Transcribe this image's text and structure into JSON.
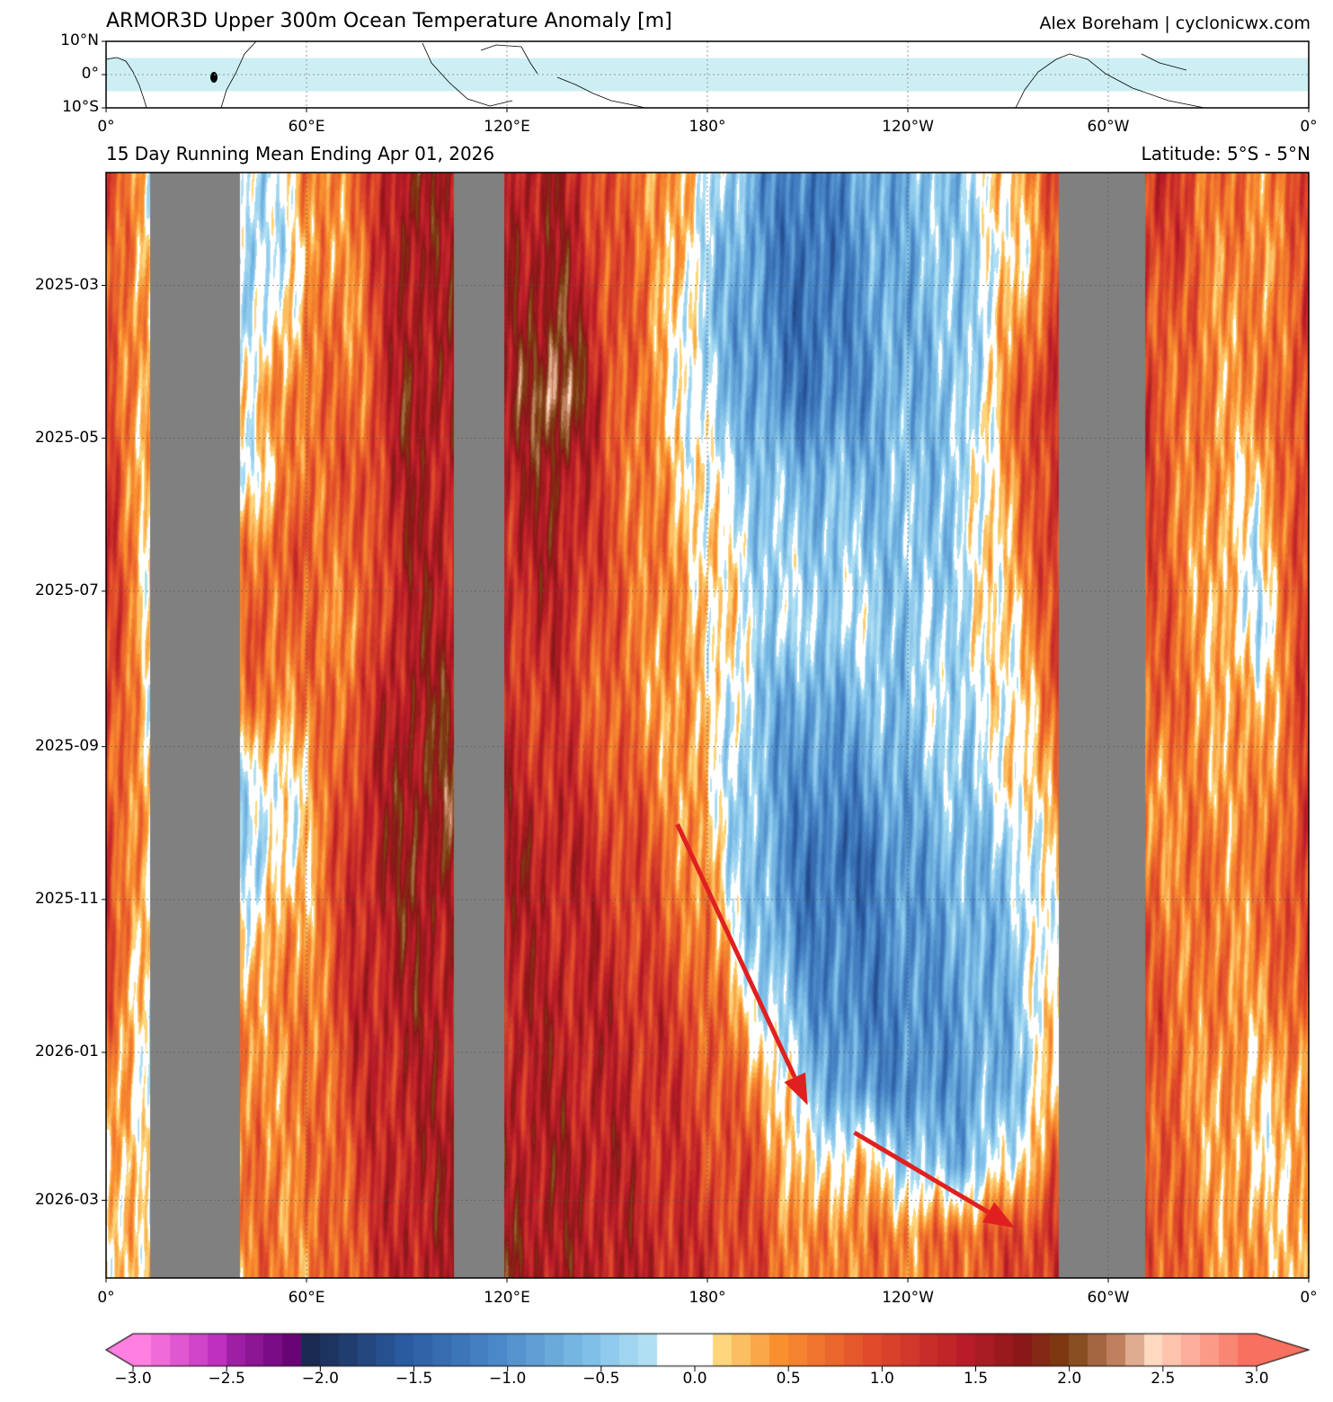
{
  "chart_data": {
    "type": "heatmap",
    "title": "ARMOR3D Upper 300m Ocean Temperature Anomaly [m]",
    "credit": "Alex Boreham | cyclonicwx.com",
    "subtitle_left": "15 Day Running Mean Ending Apr 01, 2026",
    "subtitle_right": "Latitude: 5°S - 5°N",
    "map_panel": {
      "y_ticks": [
        "10°N",
        "0°",
        "10°S"
      ],
      "lat_range": [
        -10,
        10
      ],
      "highlight_band_lat": [
        -5,
        5
      ],
      "highlight_color": "#cdeff3"
    },
    "x_ticks": [
      "0°",
      "60°E",
      "120°E",
      "180°",
      "120°W",
      "60°W",
      "0°"
    ],
    "x_tick_values": [
      0,
      60,
      120,
      180,
      240,
      300,
      360
    ],
    "xlim": [
      0,
      360
    ],
    "y_ticks": [
      "2025-03",
      "2025-05",
      "2025-07",
      "2025-09",
      "2025-11",
      "2026-01",
      "2026-03"
    ],
    "ylim": [
      "2025-01-15",
      "2026-04-01"
    ],
    "y_inverted": true,
    "grid": true,
    "land_color": "#808080",
    "land_bands_lon": [
      [
        13,
        40
      ],
      [
        104,
        119
      ],
      [
        285,
        311
      ]
    ],
    "lon": [
      0,
      15,
      30,
      45,
      60,
      75,
      90,
      105,
      120,
      135,
      150,
      165,
      180,
      195,
      210,
      225,
      240,
      255,
      270,
      285,
      300,
      315,
      330,
      345
    ],
    "time": [
      "2025-01-15",
      "2025-02-15",
      "2025-03-15",
      "2025-04-15",
      "2025-05-15",
      "2025-06-15",
      "2025-07-15",
      "2025-08-15",
      "2025-09-15",
      "2025-10-15",
      "2025-11-15",
      "2025-12-15",
      "2026-01-15",
      "2026-02-15",
      "2026-03-15"
    ],
    "values": [
      [
        1.0,
        0,
        0,
        -0.3,
        0.5,
        0.8,
        1.8,
        1.5,
        1.5,
        1.6,
        0.9,
        0.6,
        0.0,
        -0.8,
        -1.2,
        -0.8,
        -0.6,
        -0.4,
        0.3,
        1.0,
        1.0,
        1.3,
        0.8,
        0.6
      ],
      [
        1.0,
        0,
        0,
        -0.4,
        0.3,
        0.7,
        1.8,
        1.5,
        1.6,
        1.7,
        1.0,
        0.6,
        -0.3,
        -0.9,
        -1.3,
        -0.9,
        -0.6,
        -0.4,
        0.0,
        0.8,
        1.0,
        1.2,
        0.7,
        0.5
      ],
      [
        1.1,
        0,
        0,
        -0.3,
        0.6,
        0.6,
        1.7,
        1.5,
        1.6,
        2.0,
        1.1,
        0.5,
        -0.4,
        -0.9,
        -1.3,
        -0.9,
        -0.6,
        -0.5,
        0.3,
        1.2,
        1.2,
        1.0,
        0.6,
        0.5
      ],
      [
        1.2,
        0,
        0,
        0.3,
        0.8,
        0.7,
        1.8,
        1.6,
        1.6,
        2.5,
        1.1,
        0.4,
        -0.3,
        -0.8,
        -1.2,
        -0.9,
        -0.6,
        -0.5,
        0.6,
        1.6,
        1.4,
        1.0,
        0.5,
        0.6
      ],
      [
        1.3,
        0,
        0,
        0.0,
        0.8,
        0.9,
        1.6,
        1.5,
        1.5,
        1.8,
        1.0,
        0.5,
        0.0,
        -0.5,
        -0.6,
        -0.6,
        -0.5,
        -0.4,
        0.5,
        1.3,
        1.2,
        1.0,
        0.5,
        0.2
      ],
      [
        1.3,
        0,
        0,
        0.8,
        0.9,
        0.7,
        1.6,
        1.5,
        1.4,
        1.6,
        1.0,
        0.6,
        0.2,
        -0.3,
        -0.4,
        -0.4,
        -0.5,
        -0.3,
        0.4,
        1.2,
        1.2,
        0.9,
        0.4,
        0.0
      ],
      [
        1.2,
        0,
        0,
        1.0,
        0.7,
        0.6,
        1.6,
        1.5,
        1.3,
        1.4,
        0.9,
        0.6,
        0.3,
        -0.2,
        -0.3,
        -0.2,
        -0.5,
        -0.2,
        0.2,
        1.0,
        1.1,
        0.9,
        0.4,
        -0.2
      ],
      [
        1.1,
        0,
        0,
        0.7,
        0.6,
        1.0,
        1.7,
        1.8,
        1.2,
        1.2,
        0.8,
        0.5,
        0.3,
        -0.5,
        -0.8,
        -0.6,
        -0.4,
        -0.2,
        0.0,
        0.8,
        1.0,
        0.9,
        0.5,
        0.3
      ],
      [
        1.1,
        0,
        0,
        -0.2,
        0.3,
        1.2,
        1.8,
        2.0,
        1.4,
        1.3,
        1.0,
        0.7,
        0.2,
        -0.6,
        -1.0,
        -0.9,
        -0.6,
        -0.4,
        0.0,
        0.6,
        0.9,
        0.6,
        0.5,
        0.5
      ],
      [
        1.2,
        0,
        0,
        -0.3,
        0.3,
        1.4,
        1.8,
        1.8,
        1.6,
        1.5,
        1.2,
        0.9,
        0.3,
        -0.6,
        -1.2,
        -1.3,
        -0.8,
        -0.6,
        -0.4,
        0.3,
        0.9,
        0.6,
        0.7,
        0.6
      ],
      [
        1.2,
        0,
        0,
        0.3,
        0.5,
        1.3,
        1.7,
        1.6,
        1.5,
        1.4,
        1.3,
        1.0,
        0.6,
        -0.5,
        -1.1,
        -1.1,
        -0.9,
        -0.7,
        -0.5,
        0.2,
        1.0,
        0.8,
        0.6,
        0.6
      ],
      [
        0.8,
        0,
        0,
        0.6,
        0.6,
        1.3,
        1.6,
        1.5,
        1.5,
        1.5,
        1.4,
        1.2,
        0.9,
        0.0,
        -0.8,
        -1.1,
        -1.0,
        -0.8,
        -0.6,
        0.3,
        1.1,
        0.9,
        0.6,
        0.5
      ],
      [
        0.4,
        0,
        0,
        0.6,
        0.6,
        1.2,
        1.5,
        1.5,
        1.5,
        1.5,
        1.4,
        1.3,
        1.0,
        0.6,
        -0.4,
        -0.9,
        -1.0,
        -0.8,
        -0.6,
        0.3,
        1.1,
        0.8,
        0.5,
        0.3
      ],
      [
        0.3,
        0,
        0,
        0.7,
        0.6,
        1.1,
        1.5,
        1.6,
        1.6,
        1.6,
        1.5,
        1.3,
        1.1,
        0.9,
        0.0,
        0.3,
        -0.3,
        -0.6,
        0.0,
        0.8,
        1.2,
        0.9,
        0.5,
        0.2
      ],
      [
        0.4,
        0,
        0,
        0.7,
        0.6,
        1.0,
        1.5,
        1.6,
        1.7,
        1.6,
        1.5,
        1.4,
        1.2,
        1.0,
        0.5,
        0.7,
        0.6,
        0.8,
        1.0,
        1.3,
        1.3,
        1.0,
        0.6,
        0.4
      ]
    ],
    "annotations": [
      {
        "type": "arrow",
        "color": "#e02020",
        "from": {
          "lon": 171,
          "time": "2025-10-02"
        },
        "to": {
          "lon": 210,
          "time": "2026-01-22"
        }
      },
      {
        "type": "arrow",
        "color": "#e02020",
        "from": {
          "lon": 224,
          "time": "2026-02-02"
        },
        "to": {
          "lon": 272,
          "time": "2026-03-12"
        }
      }
    ],
    "colorbar": {
      "range": [
        -3.0,
        3.0
      ],
      "step": 0.1,
      "extend": "both",
      "ticks": [
        "−3.0",
        "−2.5",
        "−2.0",
        "−1.5",
        "−1.0",
        "−0.5",
        "0.0",
        "0.5",
        "1.0",
        "1.5",
        "2.0",
        "2.5",
        "3.0"
      ],
      "tick_values": [
        -3,
        -2.5,
        -2,
        -1.5,
        -1,
        -0.5,
        0,
        0.5,
        1,
        1.5,
        2,
        2.5,
        3
      ]
    }
  }
}
